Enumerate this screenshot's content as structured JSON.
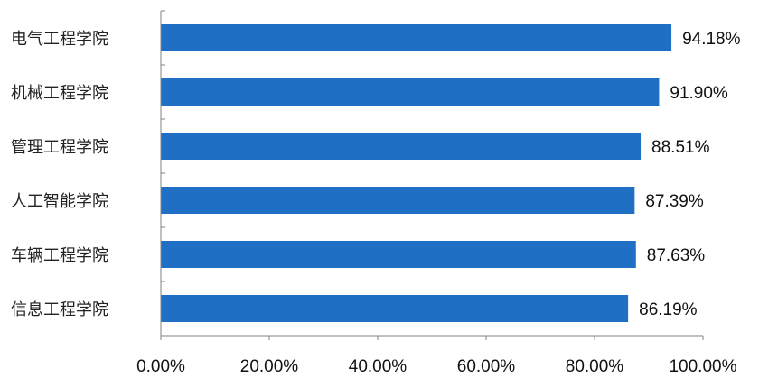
{
  "chart_data": {
    "type": "bar",
    "orientation": "horizontal",
    "title": "",
    "xlabel": "",
    "ylabel": "",
    "categories": [
      "电气工程学院",
      "机械工程学院",
      "管理工程学院",
      "人工智能学院",
      "车辆工程学院",
      "信息工程学院"
    ],
    "values": [
      94.18,
      91.9,
      88.51,
      87.39,
      87.63,
      86.19
    ],
    "value_labels": [
      "94.18%",
      "91.90%",
      "88.51%",
      "87.39%",
      "87.63%",
      "86.19%"
    ],
    "xlim": [
      0,
      100
    ],
    "x_ticks": [
      0,
      20,
      40,
      60,
      80,
      100
    ],
    "x_tick_labels": [
      "0.00%",
      "20.00%",
      "40.00%",
      "60.00%",
      "80.00%",
      "100.00%"
    ],
    "bar_color": "#1f6fc5",
    "grid": false,
    "legend": "none"
  }
}
